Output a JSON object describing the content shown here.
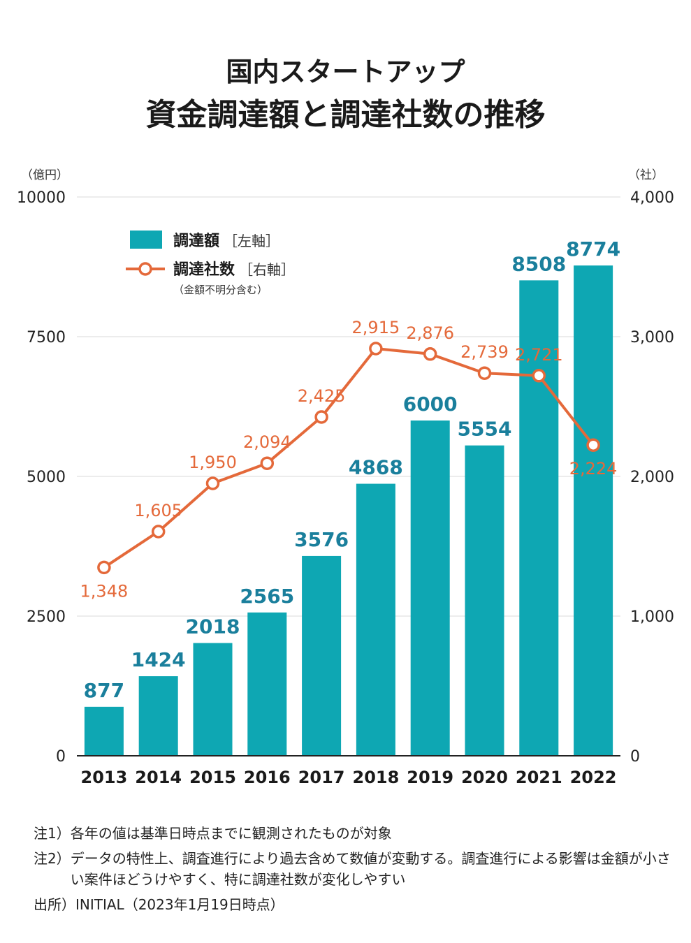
{
  "title": {
    "line1": "国内スタートアップ",
    "line2": "資金調達額と調達社数の推移"
  },
  "axes": {
    "left_unit": "（億円）",
    "right_unit": "（社）",
    "left_ticks": [
      "0",
      "2500",
      "5000",
      "7500",
      "10000"
    ],
    "right_ticks": [
      "0",
      "1,000",
      "2,000",
      "3,000",
      "4,000"
    ]
  },
  "legend": {
    "bar_label": "調達額",
    "bar_axis": "［左軸］",
    "line_label": "調達社数",
    "line_axis": "［右軸］",
    "line_note": "（金額不明分含む）"
  },
  "colors": {
    "bar": "#0ea7b3",
    "line": "#e4693a",
    "bar_label": "#1a7f9c",
    "grid": "#e6e6e6",
    "axis": "#222222"
  },
  "chart_data": {
    "type": "bar",
    "title": "国内スタートアップ 資金調達額と調達社数の推移",
    "categories": [
      "2013",
      "2014",
      "2015",
      "2016",
      "2017",
      "2018",
      "2019",
      "2020",
      "2021",
      "2022"
    ],
    "series": [
      {
        "name": "調達額",
        "axis": "left",
        "type": "bar",
        "values": [
          877,
          1424,
          2018,
          2565,
          3576,
          4868,
          6000,
          5554,
          8508,
          8774
        ],
        "labels": [
          "877",
          "1424",
          "2018",
          "2565",
          "3576",
          "4868",
          "6000",
          "5554",
          "8508",
          "8774"
        ]
      },
      {
        "name": "調達社数",
        "axis": "right",
        "type": "line",
        "values": [
          1348,
          1605,
          1950,
          2094,
          2425,
          2915,
          2876,
          2739,
          2721,
          2224
        ],
        "labels": [
          "1,348",
          "1,605",
          "1,950",
          "2,094",
          "2,425",
          "2,915",
          "2,876",
          "2,739",
          "2,721",
          "2,224"
        ]
      }
    ],
    "ylabel": "億円",
    "y2label": "社",
    "ylim": [
      0,
      10000
    ],
    "y2lim": [
      0,
      4000
    ]
  },
  "notes": [
    {
      "label": "注1）",
      "text": "各年の値は基準日時点までに観測されたものが対象"
    },
    {
      "label": "注2）",
      "text": "データの特性上、調査進行により過去含めて数値が変動する。調査進行による影響は金額が小さい案件ほどうけやすく、特に調達社数が変化しやすい"
    },
    {
      "label": "出所）",
      "text": "INITIAL（2023年1月19日時点）"
    }
  ]
}
